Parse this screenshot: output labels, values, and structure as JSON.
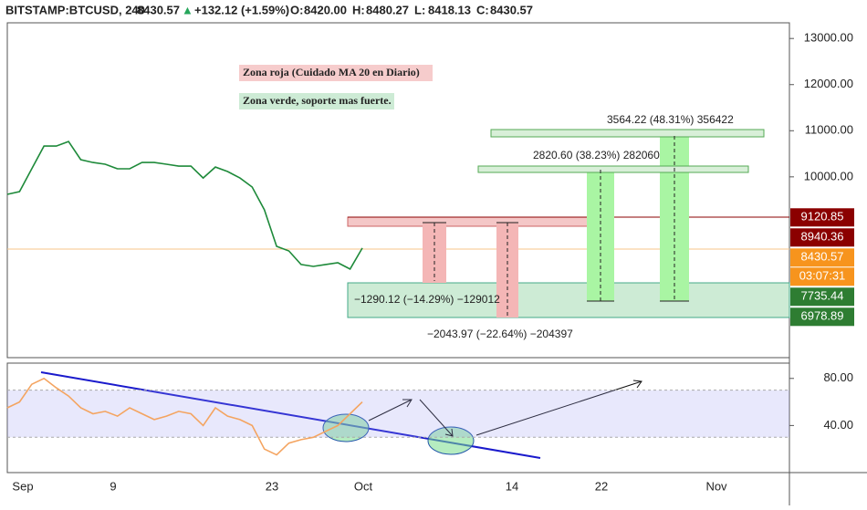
{
  "header": {
    "symbol": "BITSTAMP:BTCUSD, 240",
    "last": "8430.57",
    "arrow": "▲",
    "change": "+132.12 (+1.59%)",
    "ohlc": [
      {
        "key": "O:",
        "value": "8420.00"
      },
      {
        "key": "H:",
        "value": "8480.27"
      },
      {
        "key": "L:",
        "value": "8418.13"
      },
      {
        "key": "C:",
        "value": "8430.57"
      }
    ]
  },
  "chart_data": [
    {
      "type": "line",
      "color": "#1e8a3a",
      "values": [
        9621,
        9680,
        10174,
        10668,
        10668,
        10767,
        10372,
        10312,
        10273,
        10174,
        10174,
        10312,
        10312,
        10273,
        10233,
        10233,
        9976,
        10213,
        10115,
        9976,
        9779,
        9285,
        8494,
        8395,
        8099,
        8059,
        8099,
        8138,
        8000,
        8455
      ],
      "ylim": [
        6080,
        13340
      ],
      "yticks": [
        {
          "value": 13000,
          "label": "13000.00"
        },
        {
          "value": 12000,
          "label": "12000.00"
        },
        {
          "value": 11000,
          "label": "11000.00"
        },
        {
          "value": 10000,
          "label": "10000.00"
        }
      ],
      "price_labels": [
        {
          "value": 9120.85,
          "label": "9120.85",
          "color": "#8b0000"
        },
        {
          "value": 8940.36,
          "label": "8940.36",
          "color": "#8b0000"
        },
        {
          "value": 8430.57,
          "label": "8430.57",
          "color": "#f7941d"
        },
        {
          "value": 7735.44,
          "label": "7735.44",
          "color": "#2e7d32"
        },
        {
          "value": 6978.89,
          "label": "6978.89",
          "color": "#2e7d32"
        }
      ],
      "countdown": "03:07:31",
      "annotations": [
        "Zona roja (Cuidado MA 20 en Diario)",
        "Zona verde, soporte mas fuerte.",
        "3564.22 (48.31%) 356422",
        "2820.60 (38.23%) 282060",
        "−1290.12 (−14.29%) −129012",
        "−2043.97 (−22.64%) −204397"
      ]
    },
    {
      "type": "line",
      "color": "#f4a460",
      "values": [
        55,
        60,
        75,
        80,
        72,
        65,
        55,
        50,
        52,
        48,
        55,
        50,
        45,
        48,
        52,
        50,
        40,
        55,
        48,
        45,
        40,
        20,
        15,
        25,
        28,
        30,
        35,
        40,
        50,
        60
      ],
      "ylim": [
        0,
        93
      ],
      "yticks": [
        {
          "value": 80,
          "label": "80.00"
        },
        {
          "value": 40,
          "label": "40.00"
        }
      ],
      "band": [
        30,
        70
      ]
    }
  ],
  "time_axis": [
    "Sep",
    "9",
    "23",
    "Oct",
    "14",
    "22",
    "Nov"
  ]
}
